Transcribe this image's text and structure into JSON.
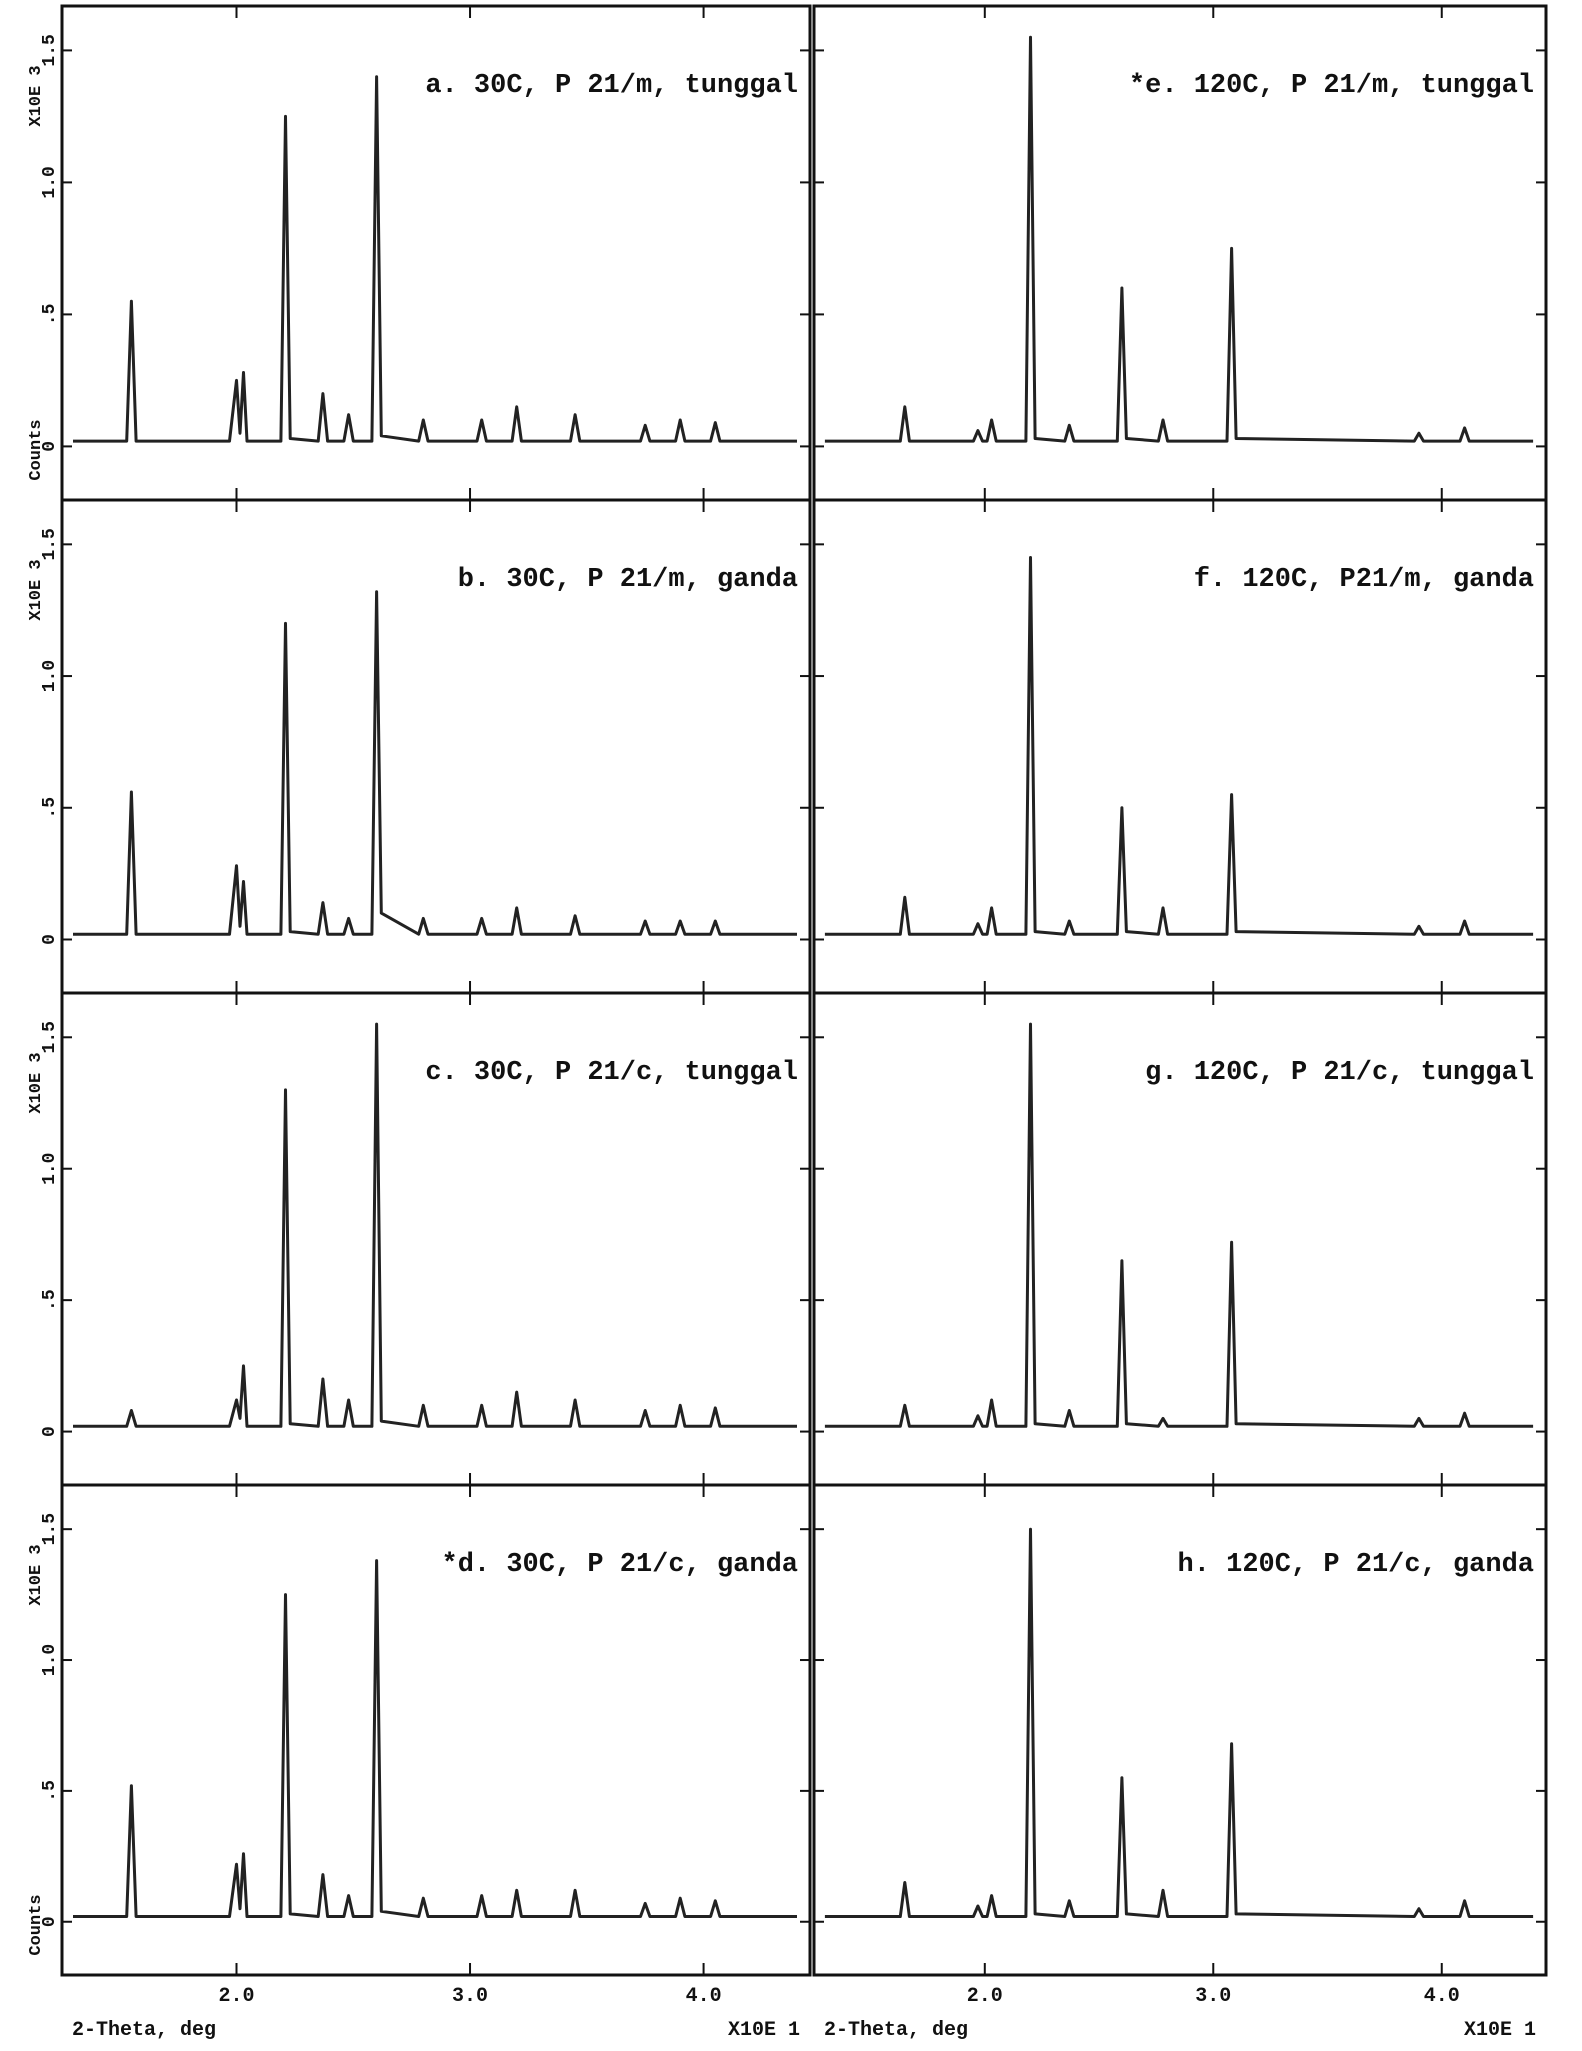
{
  "chart_data": [
    {
      "type": "line",
      "title": "a. 30C, P 21/m, tunggal",
      "y_unit": "X10E 3",
      "y_label": "Counts",
      "color": "#222222",
      "x": [
        1.3,
        1.53,
        1.55,
        1.57,
        1.97,
        2.0,
        2.015,
        2.03,
        2.045,
        2.19,
        2.21,
        2.23,
        2.35,
        2.37,
        2.39,
        2.46,
        2.48,
        2.5,
        2.58,
        2.6,
        2.62,
        2.78,
        2.8,
        2.82,
        3.03,
        3.05,
        3.07,
        3.18,
        3.2,
        3.22,
        3.43,
        3.45,
        3.47,
        3.73,
        3.75,
        3.77,
        3.88,
        3.9,
        3.92,
        4.03,
        4.05,
        4.07,
        4.4
      ],
      "values": [
        0.02,
        0.02,
        0.55,
        0.02,
        0.02,
        0.25,
        0.05,
        0.28,
        0.02,
        0.02,
        1.25,
        0.03,
        0.02,
        0.2,
        0.02,
        0.02,
        0.12,
        0.02,
        0.02,
        1.4,
        0.04,
        0.02,
        0.1,
        0.02,
        0.02,
        0.1,
        0.02,
        0.02,
        0.15,
        0.02,
        0.02,
        0.12,
        0.02,
        0.02,
        0.08,
        0.02,
        0.02,
        0.1,
        0.02,
        0.02,
        0.09,
        0.02,
        0.02
      ],
      "xlim": [
        1.27,
        4.43
      ],
      "ylim": [
        -0.15,
        1.6
      ],
      "xticks": [
        2,
        3,
        4
      ],
      "yticks": [
        0,
        {
          "value": 0.5,
          "label": ".5"
        },
        {
          "value": 1,
          "label": "1.0"
        },
        {
          "value": 1.5,
          "label": "1.5"
        }
      ]
    },
    {
      "type": "line",
      "title": "b. 30C, P 21/m, ganda",
      "y_unit": "X10E 3",
      "color": "#222222",
      "x": [
        1.3,
        1.53,
        1.55,
        1.57,
        1.97,
        2.0,
        2.015,
        2.03,
        2.045,
        2.19,
        2.21,
        2.23,
        2.35,
        2.37,
        2.39,
        2.46,
        2.48,
        2.5,
        2.58,
        2.6,
        2.62,
        2.78,
        2.8,
        2.82,
        3.03,
        3.05,
        3.07,
        3.18,
        3.2,
        3.22,
        3.43,
        3.45,
        3.47,
        3.73,
        3.75,
        3.77,
        3.88,
        3.9,
        3.92,
        4.03,
        4.05,
        4.07,
        4.4
      ],
      "values": [
        0.02,
        0.02,
        0.56,
        0.02,
        0.02,
        0.28,
        0.05,
        0.22,
        0.02,
        0.02,
        1.2,
        0.03,
        0.02,
        0.14,
        0.02,
        0.02,
        0.08,
        0.02,
        0.02,
        1.32,
        0.1,
        0.02,
        0.08,
        0.02,
        0.02,
        0.08,
        0.02,
        0.02,
        0.12,
        0.02,
        0.02,
        0.09,
        0.02,
        0.02,
        0.07,
        0.02,
        0.02,
        0.07,
        0.02,
        0.02,
        0.07,
        0.02,
        0.02
      ],
      "xlim": [
        1.27,
        4.43
      ],
      "ylim": [
        -0.15,
        1.6
      ],
      "xticks": [
        2,
        3,
        4
      ],
      "yticks": [
        0,
        {
          "value": 0.5,
          "label": ".5"
        },
        {
          "value": 1,
          "label": "1.0"
        },
        {
          "value": 1.5,
          "label": "1.5"
        }
      ]
    },
    {
      "type": "line",
      "title": "c. 30C, P 21/c, tunggal",
      "y_unit": "X10E 3",
      "color": "#222222",
      "x": [
        1.3,
        1.53,
        1.55,
        1.57,
        1.97,
        2.0,
        2.015,
        2.03,
        2.045,
        2.19,
        2.21,
        2.23,
        2.35,
        2.37,
        2.39,
        2.46,
        2.48,
        2.5,
        2.58,
        2.6,
        2.62,
        2.78,
        2.8,
        2.82,
        3.03,
        3.05,
        3.07,
        3.18,
        3.2,
        3.22,
        3.43,
        3.45,
        3.47,
        3.73,
        3.75,
        3.77,
        3.88,
        3.9,
        3.92,
        4.03,
        4.05,
        4.07,
        4.4
      ],
      "values": [
        0.02,
        0.02,
        0.08,
        0.02,
        0.02,
        0.12,
        0.05,
        0.25,
        0.02,
        0.02,
        1.3,
        0.03,
        0.02,
        0.2,
        0.02,
        0.02,
        0.12,
        0.02,
        0.02,
        1.55,
        0.04,
        0.02,
        0.1,
        0.02,
        0.02,
        0.1,
        0.02,
        0.02,
        0.15,
        0.02,
        0.02,
        0.12,
        0.02,
        0.02,
        0.08,
        0.02,
        0.02,
        0.1,
        0.02,
        0.02,
        0.09,
        0.02,
        0.02
      ],
      "xlim": [
        1.27,
        4.43
      ],
      "ylim": [
        -0.15,
        1.6
      ],
      "xticks": [
        2,
        3,
        4
      ],
      "yticks": [
        0,
        {
          "value": 0.5,
          "label": ".5"
        },
        {
          "value": 1,
          "label": "1.0"
        },
        {
          "value": 1.5,
          "label": "1.5"
        }
      ]
    },
    {
      "type": "line",
      "title": "*d. 30C, P 21/c, ganda",
      "y_unit": "X10E 3",
      "y_label": "Counts",
      "x_label": "2-Theta, deg",
      "x_unit": "X10E 1",
      "color": "#222222",
      "x": [
        1.3,
        1.53,
        1.55,
        1.57,
        1.97,
        2.0,
        2.015,
        2.03,
        2.045,
        2.19,
        2.21,
        2.23,
        2.35,
        2.37,
        2.39,
        2.46,
        2.48,
        2.5,
        2.58,
        2.6,
        2.62,
        2.78,
        2.8,
        2.82,
        3.03,
        3.05,
        3.07,
        3.18,
        3.2,
        3.22,
        3.43,
        3.45,
        3.47,
        3.73,
        3.75,
        3.77,
        3.88,
        3.9,
        3.92,
        4.03,
        4.05,
        4.07,
        4.4
      ],
      "values": [
        0.02,
        0.02,
        0.52,
        0.02,
        0.02,
        0.22,
        0.05,
        0.26,
        0.02,
        0.02,
        1.25,
        0.03,
        0.02,
        0.18,
        0.02,
        0.02,
        0.1,
        0.02,
        0.02,
        1.38,
        0.04,
        0.02,
        0.09,
        0.02,
        0.02,
        0.1,
        0.02,
        0.02,
        0.12,
        0.02,
        0.02,
        0.12,
        0.02,
        0.02,
        0.07,
        0.02,
        0.02,
        0.09,
        0.02,
        0.02,
        0.08,
        0.02,
        0.02
      ],
      "xlim": [
        1.27,
        4.43
      ],
      "ylim": [
        -0.15,
        1.6
      ],
      "xticks": [
        {
          "value": 2,
          "label": "2.0"
        },
        {
          "value": 3,
          "label": "3.0"
        },
        {
          "value": 4,
          "label": "4.0"
        }
      ],
      "yticks": [
        0,
        {
          "value": 0.5,
          "label": ".5"
        },
        {
          "value": 1,
          "label": "1.0"
        },
        {
          "value": 1.5,
          "label": "1.5"
        }
      ]
    },
    {
      "type": "line",
      "title": "*e. 120C, P 21/m, tunggal",
      "color": "#222222",
      "x": [
        1.3,
        1.63,
        1.65,
        1.67,
        1.95,
        1.97,
        1.99,
        2.01,
        2.03,
        2.05,
        2.18,
        2.2,
        2.22,
        2.35,
        2.37,
        2.39,
        2.58,
        2.6,
        2.62,
        2.76,
        2.78,
        2.8,
        3.06,
        3.08,
        3.1,
        3.88,
        3.9,
        3.92,
        4.08,
        4.1,
        4.12,
        4.4
      ],
      "values": [
        0.02,
        0.02,
        0.15,
        0.02,
        0.02,
        0.06,
        0.02,
        0.02,
        0.1,
        0.02,
        0.02,
        1.55,
        0.03,
        0.02,
        0.08,
        0.02,
        0.02,
        0.6,
        0.03,
        0.02,
        0.1,
        0.02,
        0.02,
        0.75,
        0.03,
        0.02,
        0.05,
        0.02,
        0.02,
        0.07,
        0.02,
        0.02
      ],
      "xlim": [
        1.27,
        4.43
      ],
      "ylim": [
        -0.15,
        1.6
      ],
      "xticks": [
        2,
        3,
        4
      ],
      "yticks": [
        0,
        0.5,
        1,
        1.5
      ]
    },
    {
      "type": "line",
      "title": "f. 120C, P21/m, ganda",
      "color": "#222222",
      "x": [
        1.3,
        1.63,
        1.65,
        1.67,
        1.95,
        1.97,
        1.99,
        2.01,
        2.03,
        2.05,
        2.18,
        2.2,
        2.22,
        2.35,
        2.37,
        2.39,
        2.58,
        2.6,
        2.62,
        2.76,
        2.78,
        2.8,
        3.06,
        3.08,
        3.1,
        3.88,
        3.9,
        3.92,
        4.08,
        4.1,
        4.12,
        4.4
      ],
      "values": [
        0.02,
        0.02,
        0.16,
        0.02,
        0.02,
        0.06,
        0.02,
        0.02,
        0.12,
        0.02,
        0.02,
        1.45,
        0.03,
        0.02,
        0.07,
        0.02,
        0.02,
        0.5,
        0.03,
        0.02,
        0.12,
        0.02,
        0.02,
        0.55,
        0.03,
        0.02,
        0.05,
        0.02,
        0.02,
        0.07,
        0.02,
        0.02
      ],
      "xlim": [
        1.27,
        4.43
      ],
      "ylim": [
        -0.15,
        1.6
      ],
      "xticks": [
        2,
        3,
        4
      ],
      "yticks": [
        0,
        0.5,
        1,
        1.5
      ]
    },
    {
      "type": "line",
      "title": "g. 120C, P 21/c, tunggal",
      "color": "#222222",
      "x": [
        1.3,
        1.63,
        1.65,
        1.67,
        1.95,
        1.97,
        1.99,
        2.01,
        2.03,
        2.05,
        2.18,
        2.2,
        2.22,
        2.35,
        2.37,
        2.39,
        2.58,
        2.6,
        2.62,
        2.76,
        2.78,
        2.8,
        3.06,
        3.08,
        3.1,
        3.88,
        3.9,
        3.92,
        4.08,
        4.1,
        4.12,
        4.4
      ],
      "values": [
        0.02,
        0.02,
        0.1,
        0.02,
        0.02,
        0.06,
        0.02,
        0.02,
        0.12,
        0.02,
        0.02,
        1.55,
        0.03,
        0.02,
        0.08,
        0.02,
        0.02,
        0.65,
        0.03,
        0.02,
        0.05,
        0.02,
        0.02,
        0.72,
        0.03,
        0.02,
        0.05,
        0.02,
        0.02,
        0.07,
        0.02,
        0.02
      ],
      "xlim": [
        1.27,
        4.43
      ],
      "ylim": [
        -0.15,
        1.6
      ],
      "xticks": [
        2,
        3,
        4
      ],
      "yticks": [
        0,
        0.5,
        1,
        1.5
      ]
    },
    {
      "type": "line",
      "title": "h. 120C, P 21/c, ganda",
      "x_label": "2-Theta, deg",
      "x_unit": "X10E 1",
      "color": "#222222",
      "x": [
        1.3,
        1.63,
        1.65,
        1.67,
        1.95,
        1.97,
        1.99,
        2.01,
        2.03,
        2.05,
        2.18,
        2.2,
        2.22,
        2.35,
        2.37,
        2.39,
        2.58,
        2.6,
        2.62,
        2.76,
        2.78,
        2.8,
        3.06,
        3.08,
        3.1,
        3.88,
        3.9,
        3.92,
        4.08,
        4.1,
        4.12,
        4.4
      ],
      "values": [
        0.02,
        0.02,
        0.15,
        0.02,
        0.02,
        0.06,
        0.02,
        0.02,
        0.1,
        0.02,
        0.02,
        1.5,
        0.03,
        0.02,
        0.08,
        0.02,
        0.02,
        0.55,
        0.03,
        0.02,
        0.12,
        0.02,
        0.02,
        0.68,
        0.03,
        0.02,
        0.05,
        0.02,
        0.02,
        0.08,
        0.02,
        0.02
      ],
      "xlim": [
        1.27,
        4.43
      ],
      "ylim": [
        -0.15,
        1.6
      ],
      "xticks": [
        {
          "value": 2,
          "label": "2.0"
        },
        {
          "value": 3,
          "label": "3.0"
        },
        {
          "value": 4,
          "label": "4.0"
        }
      ],
      "yticks": [
        0,
        0.5,
        1,
        1.5
      ]
    }
  ]
}
